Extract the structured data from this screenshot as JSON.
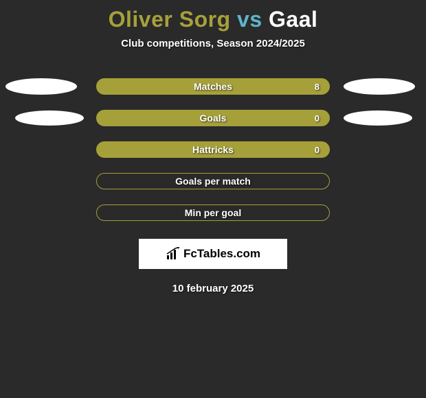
{
  "title": {
    "player1": "Oliver Sorg",
    "vs": "vs",
    "player2": "Gaal",
    "color_player1": "#a6a03a",
    "color_vs": "#5fb5c9",
    "color_player2": "#ffffff"
  },
  "subtitle": "Club competitions, Season 2024/2025",
  "stats": [
    {
      "label": "Matches",
      "value": "8",
      "show_value": true,
      "filled": true,
      "show_left_ellipse": true,
      "show_right_ellipse": true,
      "ellipse_class_left": "ellipse-left-1",
      "ellipse_class_right": "ellipse-right-1"
    },
    {
      "label": "Goals",
      "value": "0",
      "show_value": true,
      "filled": true,
      "show_left_ellipse": true,
      "show_right_ellipse": true,
      "ellipse_class_left": "ellipse-left-2",
      "ellipse_class_right": "ellipse-right-2"
    },
    {
      "label": "Hattricks",
      "value": "0",
      "show_value": true,
      "filled": true,
      "show_left_ellipse": false,
      "show_right_ellipse": false
    },
    {
      "label": "Goals per match",
      "value": "",
      "show_value": false,
      "filled": false,
      "show_left_ellipse": false,
      "show_right_ellipse": false
    },
    {
      "label": "Min per goal",
      "value": "",
      "show_value": false,
      "filled": false,
      "show_left_ellipse": false,
      "show_right_ellipse": false
    }
  ],
  "style": {
    "bar_fill_color": "#a6a03a",
    "bar_border_color": "#a6a03a",
    "bar_empty_bg": "transparent",
    "background": "#2a2a2a"
  },
  "logo": {
    "text": "FcTables.com"
  },
  "date": "10 february 2025"
}
